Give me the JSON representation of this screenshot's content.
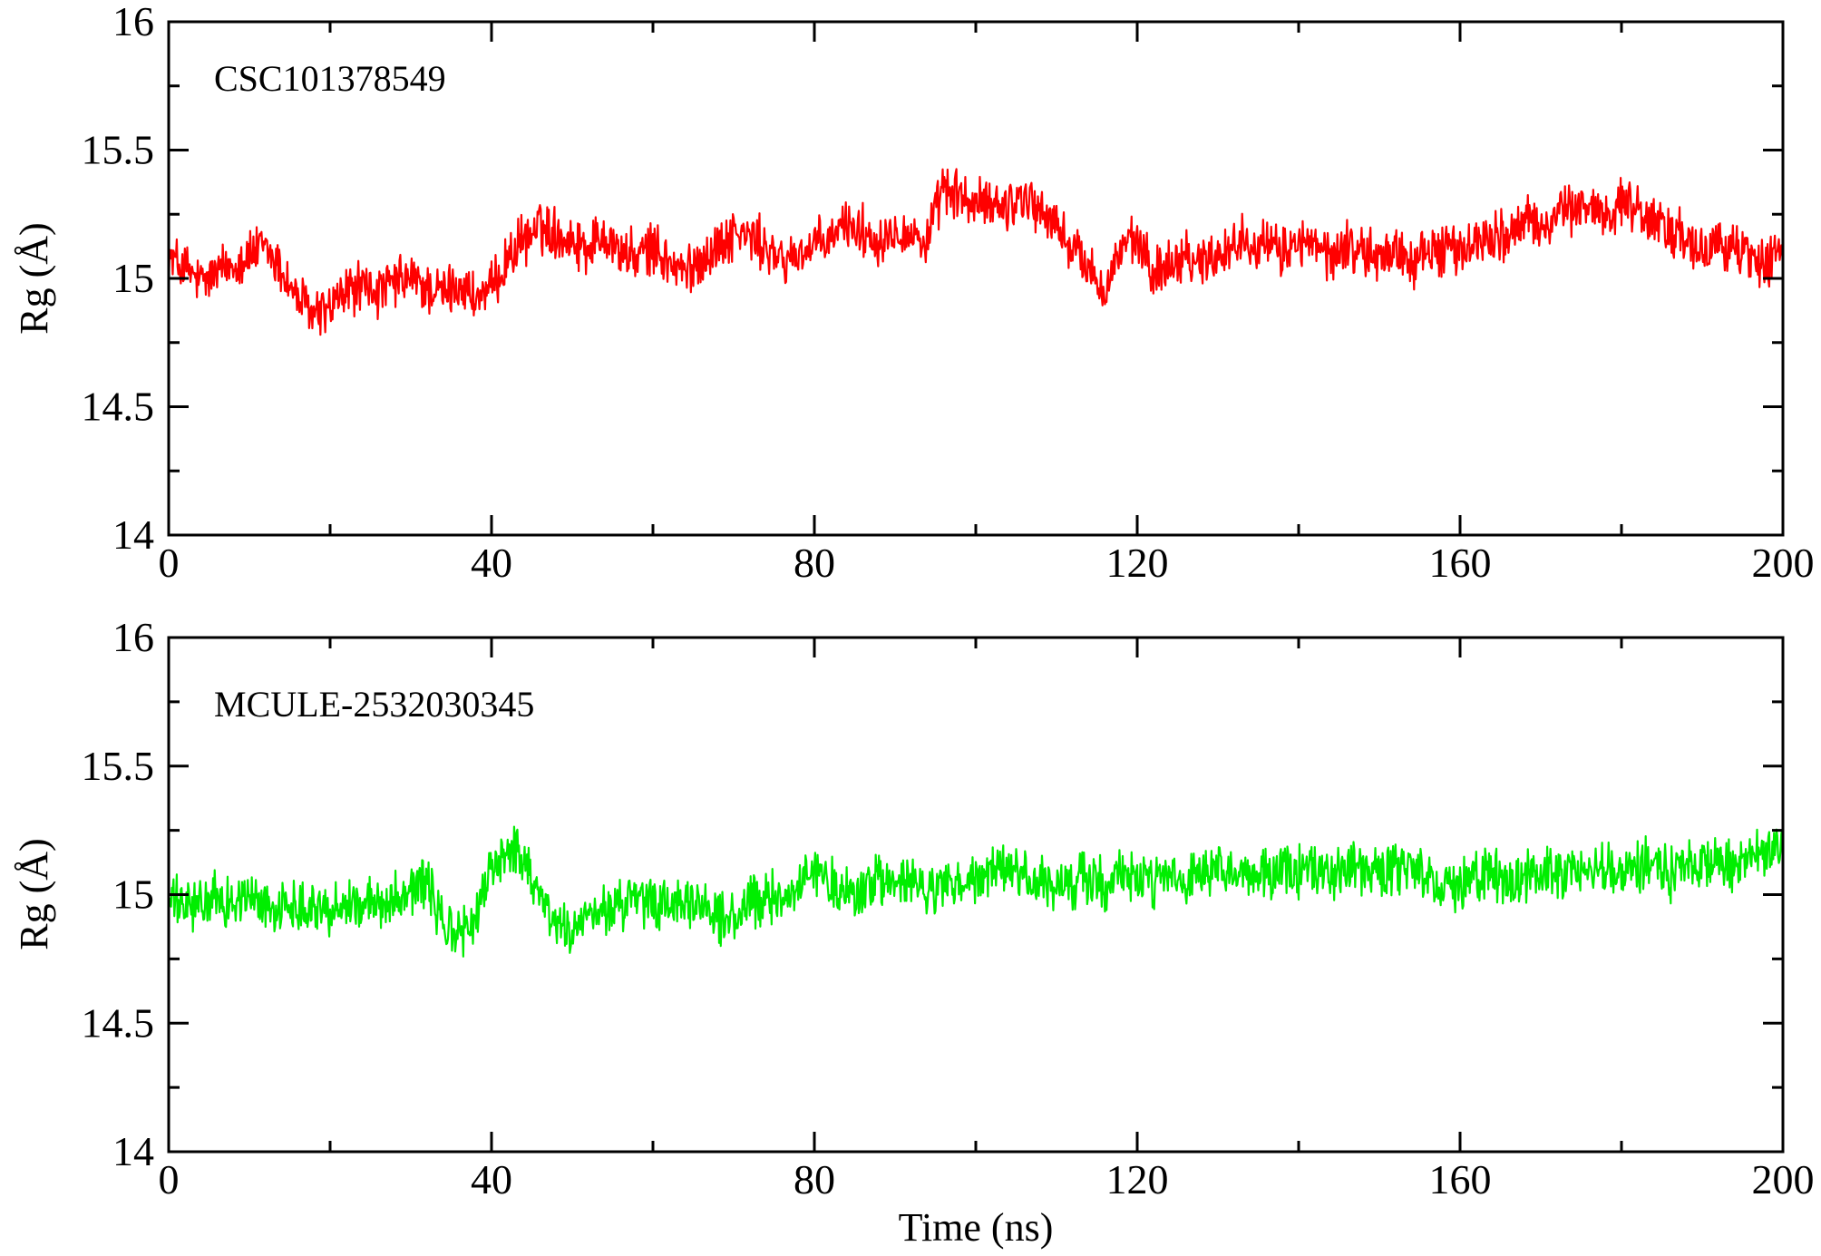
{
  "chart_data": [
    {
      "type": "line",
      "panel_label": "CSC101378549",
      "xlabel": "",
      "ylabel": "Rg (Å)",
      "xlim": [
        0,
        200
      ],
      "ylim": [
        14,
        16
      ],
      "x_ticks": [
        "0",
        "40",
        "80",
        "120",
        "160",
        "200"
      ],
      "y_ticks": [
        "14",
        "14.5",
        "15",
        "15.5",
        "16"
      ],
      "grid": false,
      "color": "#ff0000",
      "series": [
        {
          "x": [
            0,
            2,
            4,
            6,
            8,
            10,
            12,
            14,
            16,
            18,
            20,
            22,
            24,
            26,
            28,
            30,
            32,
            34,
            36,
            38,
            40,
            42,
            44,
            46,
            48,
            50,
            52,
            54,
            56,
            58,
            60,
            62,
            64,
            66,
            68,
            70,
            72,
            74,
            76,
            78,
            80,
            82,
            84,
            86,
            88,
            90,
            92,
            94,
            96,
            98,
            100,
            102,
            104,
            106,
            108,
            110,
            112,
            114,
            116,
            118,
            120,
            122,
            124,
            126,
            128,
            130,
            132,
            134,
            136,
            138,
            140,
            142,
            144,
            146,
            148,
            150,
            152,
            154,
            156,
            158,
            160,
            162,
            164,
            166,
            168,
            170,
            172,
            174,
            176,
            178,
            180,
            182,
            184,
            186,
            188,
            190,
            192,
            194,
            196,
            198,
            200
          ],
          "values": [
            15.08,
            15.04,
            14.98,
            15.02,
            15.06,
            15.09,
            15.12,
            15.03,
            14.92,
            14.86,
            14.88,
            14.95,
            14.97,
            14.94,
            14.98,
            15.0,
            14.96,
            14.94,
            14.98,
            14.92,
            14.95,
            15.08,
            15.15,
            15.2,
            15.18,
            15.15,
            15.12,
            15.18,
            15.1,
            15.08,
            15.12,
            15.06,
            15.02,
            15.08,
            15.12,
            15.18,
            15.16,
            15.12,
            15.06,
            15.1,
            15.12,
            15.15,
            15.22,
            15.18,
            15.15,
            15.2,
            15.17,
            15.14,
            15.35,
            15.32,
            15.28,
            15.3,
            15.28,
            15.33,
            15.26,
            15.2,
            15.12,
            15.04,
            14.95,
            15.12,
            15.14,
            15.02,
            15.06,
            15.1,
            15.06,
            15.1,
            15.13,
            15.16,
            15.12,
            15.1,
            15.15,
            15.12,
            15.08,
            15.13,
            15.1,
            15.08,
            15.12,
            15.06,
            15.1,
            15.12,
            15.1,
            15.14,
            15.18,
            15.16,
            15.22,
            15.2,
            15.25,
            15.27,
            15.28,
            15.25,
            15.3,
            15.26,
            15.22,
            15.2,
            15.14,
            15.08,
            15.15,
            15.12,
            15.08,
            15.06,
            15.12
          ]
        }
      ]
    },
    {
      "type": "line",
      "panel_label": "MCULE-2532030345",
      "xlabel": "Time (ns)",
      "ylabel": "Rg (Å)",
      "xlim": [
        0,
        200
      ],
      "ylim": [
        14,
        16
      ],
      "x_ticks": [
        "0",
        "40",
        "80",
        "120",
        "160",
        "200"
      ],
      "y_ticks": [
        "14",
        "14.5",
        "15",
        "15.5",
        "16"
      ],
      "grid": false,
      "color": "#00ee00",
      "series": [
        {
          "x": [
            0,
            2,
            4,
            6,
            8,
            10,
            12,
            14,
            16,
            18,
            20,
            22,
            24,
            26,
            28,
            30,
            32,
            34,
            36,
            38,
            40,
            42,
            44,
            46,
            48,
            50,
            52,
            54,
            56,
            58,
            60,
            62,
            64,
            66,
            68,
            70,
            72,
            74,
            76,
            78,
            80,
            82,
            84,
            86,
            88,
            90,
            92,
            94,
            96,
            98,
            100,
            102,
            104,
            106,
            108,
            110,
            112,
            114,
            116,
            118,
            120,
            122,
            124,
            126,
            128,
            130,
            132,
            134,
            136,
            138,
            140,
            142,
            144,
            146,
            148,
            150,
            152,
            154,
            156,
            158,
            160,
            162,
            164,
            166,
            168,
            170,
            172,
            174,
            176,
            178,
            180,
            182,
            184,
            186,
            188,
            190,
            192,
            194,
            196,
            198,
            200
          ],
          "values": [
            14.98,
            14.95,
            14.96,
            14.98,
            14.97,
            14.99,
            14.96,
            14.94,
            14.97,
            14.96,
            14.93,
            14.98,
            14.95,
            14.97,
            14.99,
            15.03,
            15.05,
            14.88,
            14.84,
            14.9,
            15.1,
            15.18,
            15.15,
            15.0,
            14.88,
            14.86,
            14.9,
            14.94,
            14.96,
            14.98,
            14.95,
            14.97,
            14.94,
            14.97,
            14.92,
            14.9,
            14.96,
            14.98,
            15.0,
            15.03,
            15.1,
            15.04,
            15.0,
            15.02,
            15.06,
            15.03,
            15.05,
            15.0,
            15.04,
            15.03,
            15.06,
            15.08,
            15.1,
            15.07,
            15.04,
            15.02,
            15.05,
            15.06,
            15.04,
            15.08,
            15.06,
            15.05,
            15.06,
            15.04,
            15.07,
            15.08,
            15.06,
            15.09,
            15.07,
            15.1,
            15.08,
            15.1,
            15.07,
            15.13,
            15.1,
            15.08,
            15.11,
            15.08,
            15.05,
            15.06,
            15.04,
            15.06,
            15.08,
            15.05,
            15.07,
            15.09,
            15.08,
            15.1,
            15.08,
            15.1,
            15.08,
            15.12,
            15.14,
            15.08,
            15.12,
            15.15,
            15.12,
            15.1,
            15.14,
            15.15,
            15.2
          ]
        }
      ]
    }
  ]
}
